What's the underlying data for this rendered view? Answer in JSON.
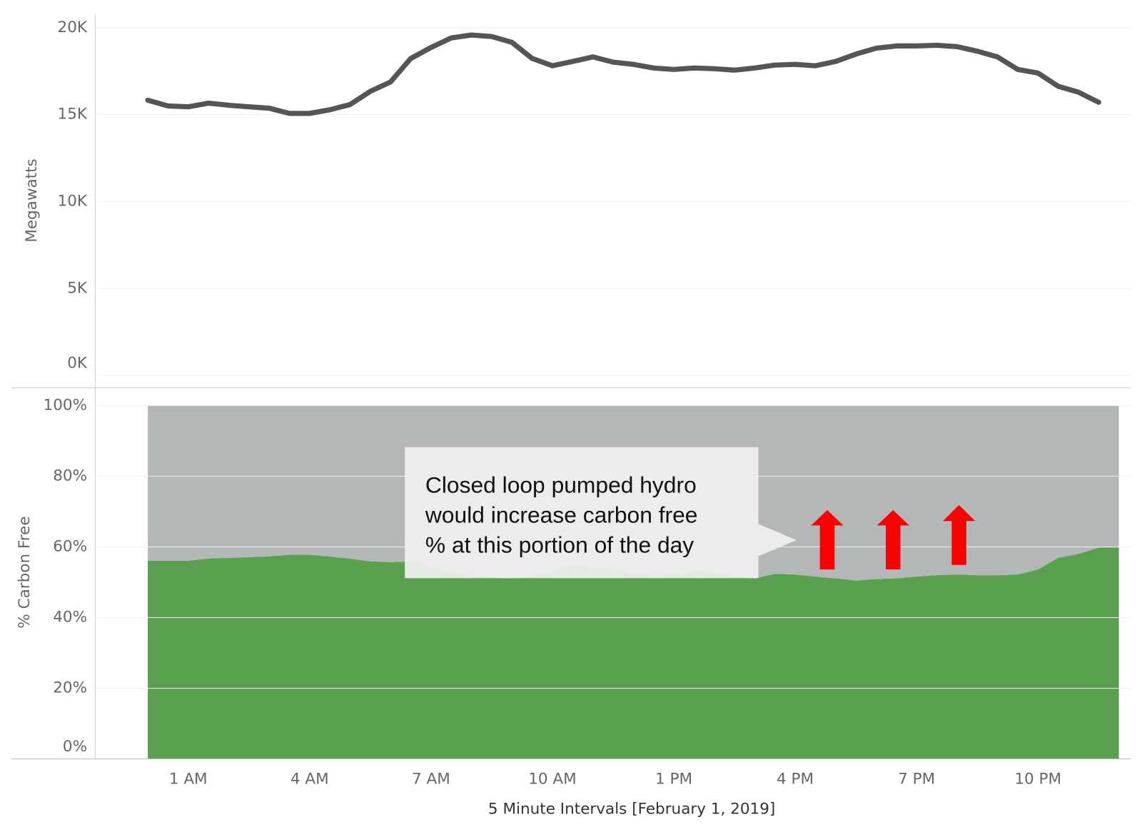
{
  "chart_data": [
    {
      "type": "line",
      "y_label": "Megawatts",
      "color": "#555555",
      "xlim": [
        -1.3,
        24.3
      ],
      "ylim": [
        0,
        20750
      ],
      "yticks": [
        {
          "value": 0,
          "label": "0K"
        },
        {
          "value": 5000,
          "label": "5K"
        },
        {
          "value": 10000,
          "label": "10K"
        },
        {
          "value": 15000,
          "label": "15K"
        },
        {
          "value": 20000,
          "label": "20K"
        }
      ],
      "grid": true,
      "x": [
        0,
        0.5,
        1,
        1.5,
        2,
        2.5,
        3,
        3.5,
        4,
        4.5,
        5,
        5.5,
        6,
        6.5,
        7,
        7.5,
        8,
        8.5,
        9,
        9.5,
        10,
        10.5,
        11,
        11.5,
        12,
        12.5,
        13,
        13.5,
        14,
        14.5,
        15,
        15.5,
        16,
        16.5,
        17,
        17.5,
        18,
        18.5,
        19,
        19.5,
        20,
        20.5,
        21,
        21.5,
        22,
        22.5,
        23,
        23.5
      ],
      "values": [
        15830,
        15500,
        15450,
        15660,
        15540,
        15450,
        15370,
        15070,
        15070,
        15280,
        15580,
        16340,
        16880,
        18230,
        18860,
        19410,
        19580,
        19490,
        19160,
        18230,
        17810,
        18060,
        18320,
        18020,
        17890,
        17680,
        17600,
        17680,
        17640,
        17560,
        17680,
        17850,
        17890,
        17810,
        18060,
        18480,
        18820,
        18950,
        18950,
        18990,
        18910,
        18650,
        18320,
        17600,
        17390,
        16630,
        16290,
        15710
      ]
    },
    {
      "type": "stacked_area",
      "y_label": "% Carbon Free",
      "x_label": "5 Minute Intervals [February 1, 2019]",
      "xlim": [
        -1.3,
        24.3
      ],
      "ylim": [
        0,
        105
      ],
      "xticks": [
        {
          "value": 1,
          "label": "1 AM"
        },
        {
          "value": 4,
          "label": "4 AM"
        },
        {
          "value": 7,
          "label": "7 AM"
        },
        {
          "value": 10,
          "label": "10 AM"
        },
        {
          "value": 13,
          "label": "1 PM"
        },
        {
          "value": 16,
          "label": "4 PM"
        },
        {
          "value": 19,
          "label": "7 PM"
        },
        {
          "value": 22,
          "label": "10 PM"
        }
      ],
      "yticks": [
        {
          "value": 0,
          "label": "0%"
        },
        {
          "value": 20,
          "label": "20%"
        },
        {
          "value": 40,
          "label": "40%"
        },
        {
          "value": 60,
          "label": "60%"
        },
        {
          "value": 80,
          "label": "80%"
        },
        {
          "value": 100,
          "label": "100%"
        }
      ],
      "grid": true,
      "x": [
        0,
        0.5,
        1,
        1.5,
        2,
        2.5,
        3,
        3.5,
        4,
        4.5,
        5,
        5.5,
        6,
        6.5,
        7,
        7.5,
        8,
        8.5,
        9,
        9.5,
        10,
        10.5,
        11,
        11.5,
        12,
        12.5,
        13,
        13.5,
        14,
        14.5,
        15,
        15.5,
        16,
        16.5,
        17,
        17.5,
        18,
        18.5,
        19,
        19.5,
        20,
        20.5,
        21,
        21.5,
        22,
        22.5,
        23,
        23.5,
        24
      ],
      "series": [
        {
          "color": "#59a14f",
          "values": [
            56.1,
            56.1,
            56.1,
            56.7,
            56.9,
            57.1,
            57.3,
            57.8,
            57.8,
            57.3,
            56.7,
            55.9,
            55.7,
            55.9,
            54.2,
            52.8,
            51.8,
            51.3,
            51.1,
            51.6,
            52.6,
            54.9,
            54.2,
            53.6,
            52.2,
            51.8,
            52,
            53.2,
            52.6,
            51.6,
            51.1,
            52.4,
            52.2,
            51.6,
            51.1,
            50.5,
            50.9,
            51.1,
            51.6,
            52,
            52.2,
            52,
            52,
            52.2,
            53.6,
            56.9,
            58,
            59.8,
            59.8
          ]
        },
        {
          "color": "#b4b7b8",
          "values": [
            43.9,
            43.9,
            43.9,
            43.3,
            43.1,
            42.9,
            42.7,
            42.2,
            42.2,
            42.7,
            43.3,
            44.1,
            44.3,
            44.1,
            45.8,
            47.2,
            48.2,
            48.7,
            48.9,
            48.4,
            47.4,
            45.1,
            45.8,
            46.4,
            47.8,
            48.2,
            48,
            46.8,
            47.4,
            48.4,
            48.9,
            47.6,
            47.8,
            48.4,
            48.9,
            49.5,
            49.1,
            48.9,
            48.4,
            48,
            47.8,
            48,
            48,
            47.8,
            46.4,
            43.1,
            42,
            40.2,
            40.2
          ]
        }
      ],
      "annotation": [
        "Closed loop pumped hydro",
        "would increase carbon free",
        "% at this portion of the day"
      ]
    }
  ]
}
